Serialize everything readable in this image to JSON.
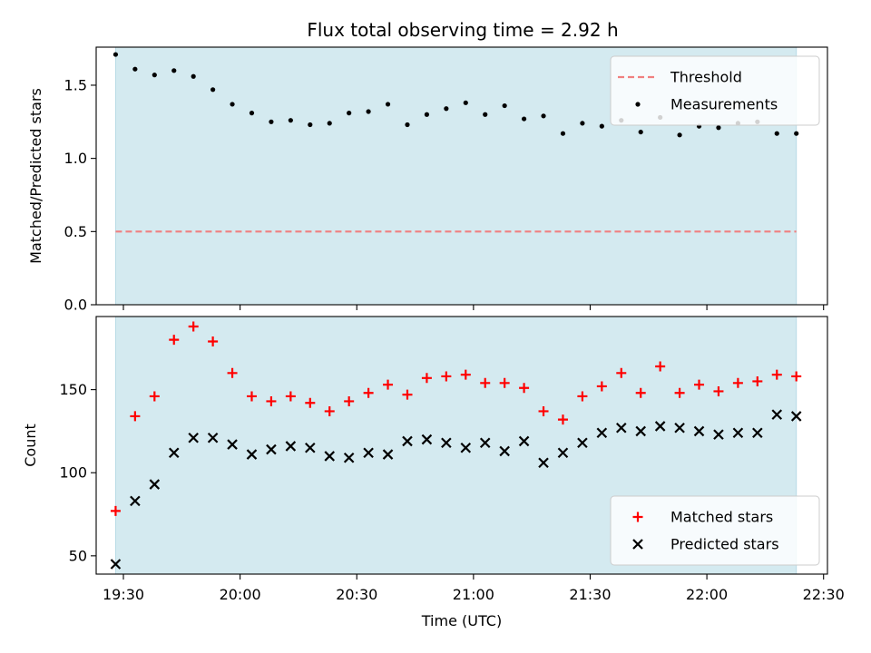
{
  "title": "Flux total observing time = 2.92 h",
  "colors": {
    "shade": "#d4eaf0",
    "shade_edge": "#b9dbe6",
    "threshold": "#f08080",
    "measurements": "#000000",
    "matched": "#ff0000",
    "predicted": "#000000"
  },
  "chart_data": [
    {
      "type": "scatter",
      "ylabel": "Matched/Predicted stars",
      "xlim": [
        "19:23",
        "22:31"
      ],
      "ylim": [
        0,
        1.76
      ],
      "yticks": [
        {
          "value": 0.0,
          "label": "0.0"
        },
        {
          "value": 0.5,
          "label": "0.5"
        },
        {
          "value": 1.0,
          "label": "1.0"
        },
        {
          "value": 1.5,
          "label": "1.5"
        }
      ],
      "shaded_span": [
        "19:28",
        "22:23"
      ],
      "threshold": {
        "name": "Threshold",
        "value": 0.5,
        "style": "dashed"
      },
      "legend": {
        "location": "upper right",
        "entries": [
          "Threshold",
          "Measurements"
        ]
      },
      "series": [
        {
          "name": "Measurements",
          "marker": "dot",
          "x": [
            "19:28",
            "19:33",
            "19:38",
            "19:43",
            "19:48",
            "19:53",
            "19:58",
            "20:03",
            "20:08",
            "20:13",
            "20:18",
            "20:23",
            "20:28",
            "20:33",
            "20:38",
            "20:43",
            "20:48",
            "20:53",
            "20:58",
            "21:03",
            "21:08",
            "21:13",
            "21:18",
            "21:23",
            "21:28",
            "21:33",
            "21:38",
            "21:43",
            "21:48",
            "21:53",
            "21:58",
            "22:03",
            "22:08",
            "22:13",
            "22:18",
            "22:23"
          ],
          "values": [
            1.71,
            1.61,
            1.57,
            1.6,
            1.56,
            1.47,
            1.37,
            1.31,
            1.25,
            1.26,
            1.23,
            1.24,
            1.31,
            1.32,
            1.37,
            1.23,
            1.3,
            1.34,
            1.38,
            1.3,
            1.36,
            1.27,
            1.29,
            1.17,
            1.24,
            1.22,
            1.26,
            1.18,
            1.28,
            1.16,
            1.22,
            1.21,
            1.24,
            1.25,
            1.17,
            1.17
          ]
        }
      ]
    },
    {
      "type": "scatter",
      "xlabel": "Time (UTC)",
      "ylabel": "Count",
      "xlim": [
        "19:23",
        "22:31"
      ],
      "ylim": [
        39,
        194
      ],
      "xticks": [
        {
          "value": "19:30",
          "label": "19:30"
        },
        {
          "value": "20:00",
          "label": "20:00"
        },
        {
          "value": "20:30",
          "label": "20:30"
        },
        {
          "value": "21:00",
          "label": "21:00"
        },
        {
          "value": "21:30",
          "label": "21:30"
        },
        {
          "value": "22:00",
          "label": "22:00"
        },
        {
          "value": "22:30",
          "label": "22:30"
        }
      ],
      "yticks": [
        {
          "value": 50,
          "label": "50"
        },
        {
          "value": 100,
          "label": "100"
        },
        {
          "value": 150,
          "label": "150"
        }
      ],
      "shaded_span": [
        "19:28",
        "22:23"
      ],
      "legend": {
        "location": "lower right",
        "entries": [
          "Matched stars",
          "Predicted stars"
        ]
      },
      "series": [
        {
          "name": "Matched stars",
          "marker": "plus",
          "x": [
            "19:28",
            "19:33",
            "19:38",
            "19:43",
            "19:48",
            "19:53",
            "19:58",
            "20:03",
            "20:08",
            "20:13",
            "20:18",
            "20:23",
            "20:28",
            "20:33",
            "20:38",
            "20:43",
            "20:48",
            "20:53",
            "20:58",
            "21:03",
            "21:08",
            "21:13",
            "21:18",
            "21:23",
            "21:28",
            "21:33",
            "21:38",
            "21:43",
            "21:48",
            "21:53",
            "21:58",
            "22:03",
            "22:08",
            "22:13",
            "22:18",
            "22:23"
          ],
          "values": [
            77,
            134,
            146,
            180,
            188,
            179,
            160,
            146,
            143,
            146,
            142,
            137,
            143,
            148,
            153,
            147,
            157,
            158,
            159,
            154,
            154,
            151,
            137,
            132,
            146,
            152,
            160,
            148,
            164,
            148,
            153,
            149,
            154,
            155,
            159,
            158
          ]
        },
        {
          "name": "Predicted stars",
          "marker": "x",
          "x": [
            "19:28",
            "19:33",
            "19:38",
            "19:43",
            "19:48",
            "19:53",
            "19:58",
            "20:03",
            "20:08",
            "20:13",
            "20:18",
            "20:23",
            "20:28",
            "20:33",
            "20:38",
            "20:43",
            "20:48",
            "20:53",
            "20:58",
            "21:03",
            "21:08",
            "21:13",
            "21:18",
            "21:23",
            "21:28",
            "21:33",
            "21:38",
            "21:43",
            "21:48",
            "21:53",
            "21:58",
            "22:03",
            "22:08",
            "22:13",
            "22:18",
            "22:23"
          ],
          "values": [
            45,
            83,
            93,
            112,
            121,
            121,
            117,
            111,
            114,
            116,
            115,
            110,
            109,
            112,
            111,
            119,
            120,
            118,
            115,
            118,
            113,
            119,
            106,
            112,
            118,
            124,
            127,
            125,
            128,
            127,
            125,
            123,
            124,
            124,
            135,
            134
          ]
        }
      ]
    }
  ]
}
